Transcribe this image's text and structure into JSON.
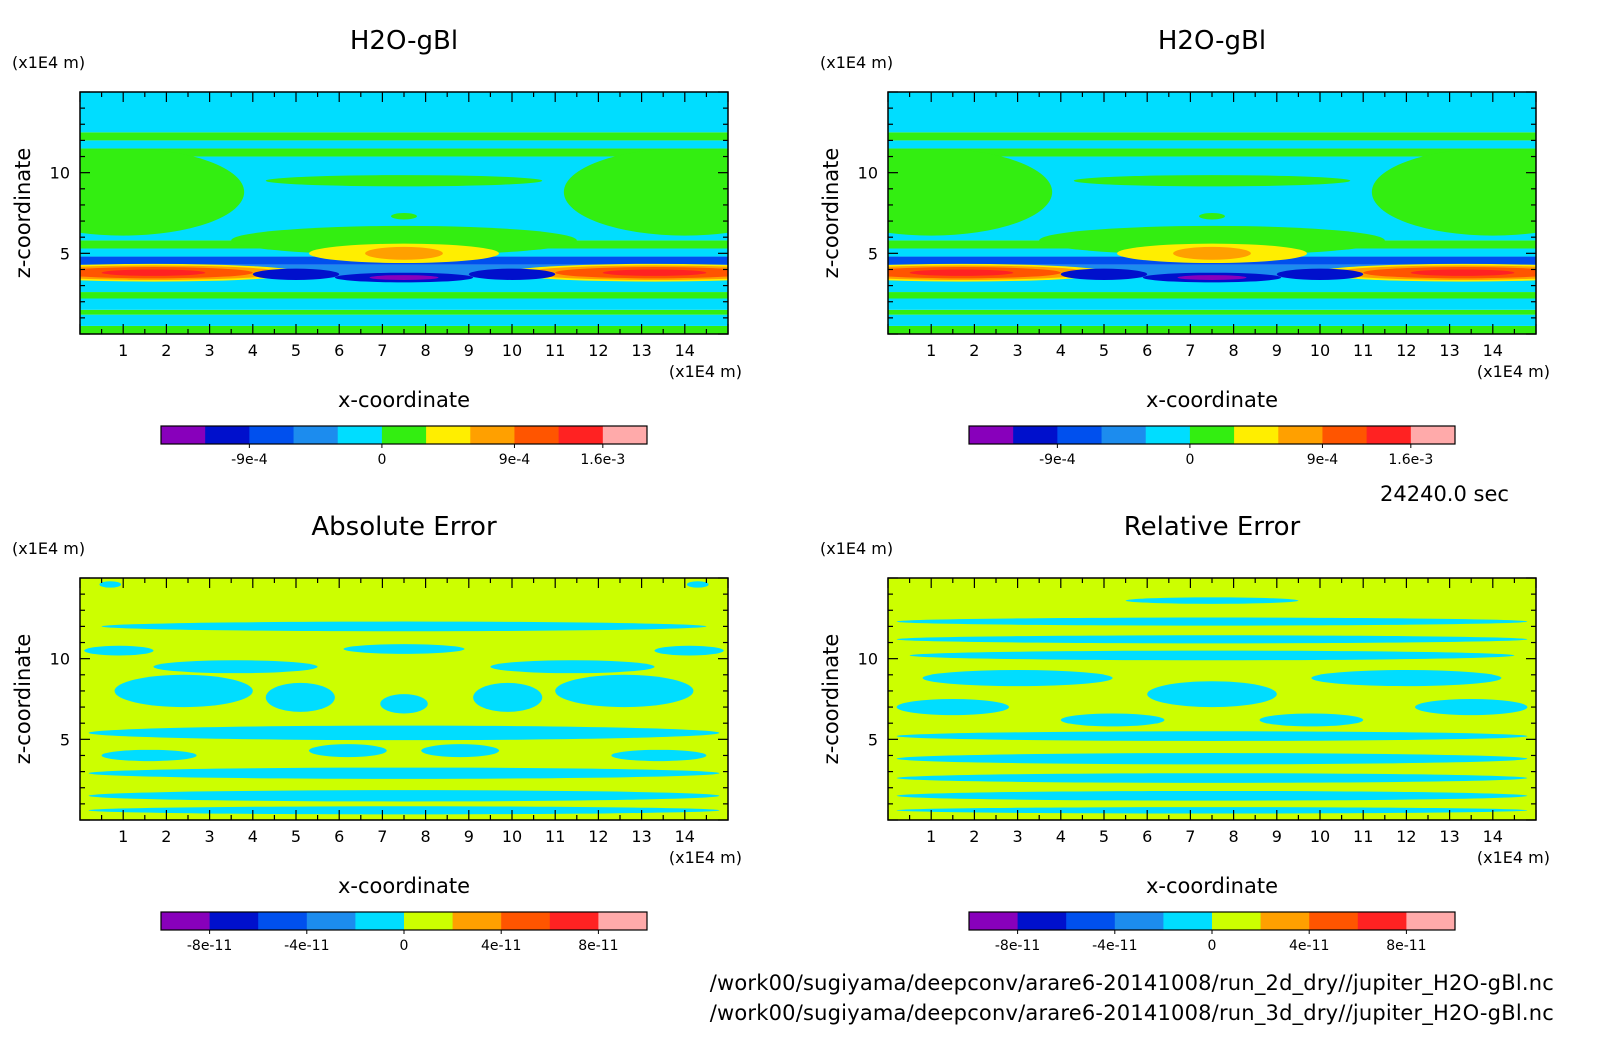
{
  "time_label": "24240.0 sec",
  "footer": {
    "path_1": "/work00/sugiyama/deepconv/arare6-20141008/run_2d_dry//jupiter_H2O-gBl.nc",
    "path_2": "/work00/sugiyama/deepconv/arare6-20141008/run_3d_dry//jupiter_H2O-gBl.nc"
  },
  "chart_data": [
    {
      "type": "heatmap",
      "title": "H2O-gBl",
      "xlabel": "x-coordinate",
      "ylabel": "z-coordinate",
      "x_unit": "(x1E4 m)",
      "y_unit": "(x1E4 m)",
      "xlim": [
        0,
        15
      ],
      "ylim": [
        0,
        15
      ],
      "x_ticks": [
        "1",
        "2",
        "3",
        "4",
        "5",
        "6",
        "7",
        "8",
        "9",
        "10",
        "11",
        "12",
        "13",
        "14"
      ],
      "y_ticks": [
        "5",
        "10"
      ],
      "colorbar": {
        "colors": [
          "#8800bb",
          "#0010cc",
          "#0050ee",
          "#1c8cee",
          "#00ddff",
          "#33ee11",
          "#ffee00",
          "#ffa000",
          "#ff5500",
          "#ff2222",
          "#ffaaaa"
        ],
        "labels": [
          "-9e-4",
          "0",
          "9e-4",
          "1.6e-3"
        ]
      },
      "bands": [
        {
          "z": [
            0,
            0.5
          ],
          "color": "#33ee11"
        },
        {
          "z": [
            0.5,
            1.2
          ],
          "color": "#00ddff"
        },
        {
          "z": [
            1.2,
            1.5
          ],
          "color": "#33ee11"
        },
        {
          "z": [
            1.5,
            2.2
          ],
          "color": "#00ddff"
        },
        {
          "z": [
            2.2,
            2.6
          ],
          "color": "#33ee11"
        },
        {
          "z": [
            2.6,
            3.5
          ],
          "color": "#00ddff"
        },
        {
          "z": [
            3.5,
            4.3
          ],
          "color": "#1c8cee"
        },
        {
          "z": [
            4.3,
            4.8
          ],
          "color": "#0050ee"
        },
        {
          "z": [
            4.8,
            5.3
          ],
          "color": "#00ddff"
        },
        {
          "z": [
            5.3,
            5.8
          ],
          "color": "#33ee11"
        },
        {
          "z": [
            5.8,
            11.0
          ],
          "color": "#00ddff"
        },
        {
          "z": [
            11.0,
            11.5
          ],
          "color": "#33ee11"
        },
        {
          "z": [
            11.5,
            12.0
          ],
          "color": "#00ddff"
        },
        {
          "z": [
            12.0,
            12.5
          ],
          "color": "#33ee11"
        },
        {
          "z": [
            12.5,
            15.0
          ],
          "color": "#00ddff"
        }
      ],
      "blobs": [
        {
          "x": 1.0,
          "z": 8.8,
          "rx": 2.8,
          "rz": 2.7,
          "color": "#33ee11"
        },
        {
          "x": 14.0,
          "z": 8.8,
          "rx": 2.8,
          "rz": 2.7,
          "color": "#33ee11"
        },
        {
          "x": 7.5,
          "z": 9.5,
          "rx": 3.2,
          "rz": 0.35,
          "color": "#33ee11"
        },
        {
          "x": 7.5,
          "z": 7.3,
          "rx": 0.3,
          "rz": 0.2,
          "color": "#33ee11"
        },
        {
          "x": 7.5,
          "z": 5.8,
          "rx": 4.0,
          "rz": 0.9,
          "color": "#33ee11"
        },
        {
          "x": 7.5,
          "z": 5.0,
          "rx": 2.2,
          "rz": 0.6,
          "color": "#ffee00"
        },
        {
          "x": 7.5,
          "z": 5.0,
          "rx": 0.9,
          "rz": 0.4,
          "color": "#ffa000"
        },
        {
          "x": 1.7,
          "z": 3.8,
          "rx": 3.4,
          "rz": 0.55,
          "color": "#ffee00"
        },
        {
          "x": 1.7,
          "z": 3.8,
          "rx": 3.0,
          "rz": 0.45,
          "color": "#ffa000"
        },
        {
          "x": 1.7,
          "z": 3.8,
          "rx": 2.3,
          "rz": 0.35,
          "color": "#ff5500"
        },
        {
          "x": 1.7,
          "z": 3.8,
          "rx": 1.2,
          "rz": 0.2,
          "color": "#ff2222"
        },
        {
          "x": 13.3,
          "z": 3.8,
          "rx": 3.4,
          "rz": 0.55,
          "color": "#ffee00"
        },
        {
          "x": 13.3,
          "z": 3.8,
          "rx": 3.0,
          "rz": 0.45,
          "color": "#ffa000"
        },
        {
          "x": 13.3,
          "z": 3.8,
          "rx": 2.3,
          "rz": 0.35,
          "color": "#ff5500"
        },
        {
          "x": 13.3,
          "z": 3.8,
          "rx": 1.2,
          "rz": 0.2,
          "color": "#ff2222"
        },
        {
          "x": 5.0,
          "z": 3.7,
          "rx": 1.0,
          "rz": 0.35,
          "color": "#0010cc"
        },
        {
          "x": 10.0,
          "z": 3.7,
          "rx": 1.0,
          "rz": 0.35,
          "color": "#0010cc"
        },
        {
          "x": 7.5,
          "z": 3.5,
          "rx": 1.6,
          "rz": 0.3,
          "color": "#0010cc"
        },
        {
          "x": 7.5,
          "z": 3.5,
          "rx": 0.8,
          "rz": 0.15,
          "color": "#8800bb"
        }
      ]
    },
    {
      "type": "heatmap",
      "title": "H2O-gBl",
      "xlabel": "x-coordinate",
      "ylabel": "z-coordinate",
      "x_unit": "(x1E4 m)",
      "y_unit": "(x1E4 m)",
      "xlim": [
        0,
        15
      ],
      "ylim": [
        0,
        15
      ],
      "x_ticks": [
        "1",
        "2",
        "3",
        "4",
        "5",
        "6",
        "7",
        "8",
        "9",
        "10",
        "11",
        "12",
        "13",
        "14"
      ],
      "y_ticks": [
        "5",
        "10"
      ],
      "colorbar": {
        "colors": [
          "#8800bb",
          "#0010cc",
          "#0050ee",
          "#1c8cee",
          "#00ddff",
          "#33ee11",
          "#ffee00",
          "#ffa000",
          "#ff5500",
          "#ff2222",
          "#ffaaaa"
        ],
        "labels": [
          "-9e-4",
          "0",
          "9e-4",
          "1.6e-3"
        ]
      },
      "bands": [
        {
          "z": [
            0,
            0.5
          ],
          "color": "#33ee11"
        },
        {
          "z": [
            0.5,
            1.2
          ],
          "color": "#00ddff"
        },
        {
          "z": [
            1.2,
            1.5
          ],
          "color": "#33ee11"
        },
        {
          "z": [
            1.5,
            2.2
          ],
          "color": "#00ddff"
        },
        {
          "z": [
            2.2,
            2.6
          ],
          "color": "#33ee11"
        },
        {
          "z": [
            2.6,
            3.5
          ],
          "color": "#00ddff"
        },
        {
          "z": [
            3.5,
            4.3
          ],
          "color": "#1c8cee"
        },
        {
          "z": [
            4.3,
            4.8
          ],
          "color": "#0050ee"
        },
        {
          "z": [
            4.8,
            5.3
          ],
          "color": "#00ddff"
        },
        {
          "z": [
            5.3,
            5.8
          ],
          "color": "#33ee11"
        },
        {
          "z": [
            5.8,
            11.0
          ],
          "color": "#00ddff"
        },
        {
          "z": [
            11.0,
            11.5
          ],
          "color": "#33ee11"
        },
        {
          "z": [
            11.5,
            12.0
          ],
          "color": "#00ddff"
        },
        {
          "z": [
            12.0,
            12.5
          ],
          "color": "#33ee11"
        },
        {
          "z": [
            12.5,
            15.0
          ],
          "color": "#00ddff"
        }
      ],
      "blobs": [
        {
          "x": 1.0,
          "z": 8.8,
          "rx": 2.8,
          "rz": 2.7,
          "color": "#33ee11"
        },
        {
          "x": 14.0,
          "z": 8.8,
          "rx": 2.8,
          "rz": 2.7,
          "color": "#33ee11"
        },
        {
          "x": 7.5,
          "z": 9.5,
          "rx": 3.2,
          "rz": 0.35,
          "color": "#33ee11"
        },
        {
          "x": 7.5,
          "z": 7.3,
          "rx": 0.3,
          "rz": 0.2,
          "color": "#33ee11"
        },
        {
          "x": 7.5,
          "z": 5.8,
          "rx": 4.0,
          "rz": 0.9,
          "color": "#33ee11"
        },
        {
          "x": 7.5,
          "z": 5.0,
          "rx": 2.2,
          "rz": 0.6,
          "color": "#ffee00"
        },
        {
          "x": 7.5,
          "z": 5.0,
          "rx": 0.9,
          "rz": 0.4,
          "color": "#ffa000"
        },
        {
          "x": 1.7,
          "z": 3.8,
          "rx": 3.4,
          "rz": 0.55,
          "color": "#ffee00"
        },
        {
          "x": 1.7,
          "z": 3.8,
          "rx": 3.0,
          "rz": 0.45,
          "color": "#ffa000"
        },
        {
          "x": 1.7,
          "z": 3.8,
          "rx": 2.3,
          "rz": 0.35,
          "color": "#ff5500"
        },
        {
          "x": 1.7,
          "z": 3.8,
          "rx": 1.2,
          "rz": 0.2,
          "color": "#ff2222"
        },
        {
          "x": 13.3,
          "z": 3.8,
          "rx": 3.4,
          "rz": 0.55,
          "color": "#ffee00"
        },
        {
          "x": 13.3,
          "z": 3.8,
          "rx": 3.0,
          "rz": 0.45,
          "color": "#ffa000"
        },
        {
          "x": 13.3,
          "z": 3.8,
          "rx": 2.3,
          "rz": 0.35,
          "color": "#ff5500"
        },
        {
          "x": 13.3,
          "z": 3.8,
          "rx": 1.2,
          "rz": 0.2,
          "color": "#ff2222"
        },
        {
          "x": 5.0,
          "z": 3.7,
          "rx": 1.0,
          "rz": 0.35,
          "color": "#0010cc"
        },
        {
          "x": 10.0,
          "z": 3.7,
          "rx": 1.0,
          "rz": 0.35,
          "color": "#0010cc"
        },
        {
          "x": 7.5,
          "z": 3.5,
          "rx": 1.6,
          "rz": 0.3,
          "color": "#0010cc"
        },
        {
          "x": 7.5,
          "z": 3.5,
          "rx": 0.8,
          "rz": 0.15,
          "color": "#8800bb"
        }
      ]
    },
    {
      "type": "heatmap",
      "title": "Absolute Error",
      "xlabel": "x-coordinate",
      "ylabel": "z-coordinate",
      "x_unit": "(x1E4 m)",
      "y_unit": "(x1E4 m)",
      "xlim": [
        0,
        15
      ],
      "ylim": [
        0,
        15
      ],
      "x_ticks": [
        "1",
        "2",
        "3",
        "4",
        "5",
        "6",
        "7",
        "8",
        "9",
        "10",
        "11",
        "12",
        "13",
        "14"
      ],
      "y_ticks": [
        "5",
        "10"
      ],
      "colorbar": {
        "colors": [
          "#8800bb",
          "#0010cc",
          "#0050ee",
          "#1c8cee",
          "#00ddff",
          "#ccff00",
          "#ffa000",
          "#ff5500",
          "#ff2222",
          "#ffaaaa"
        ],
        "labels": [
          "-8e-11",
          "-4e-11",
          "0",
          "4e-11",
          "8e-11"
        ]
      },
      "base_color": "#ccff00",
      "blobs": [
        {
          "x": 7.5,
          "z": 5.4,
          "rx": 7.3,
          "rz": 0.45,
          "color": "#00ddff"
        },
        {
          "x": 7.5,
          "z": 2.9,
          "rx": 7.3,
          "rz": 0.35,
          "color": "#00ddff"
        },
        {
          "x": 7.5,
          "z": 1.5,
          "rx": 7.3,
          "rz": 0.35,
          "color": "#00ddff"
        },
        {
          "x": 7.5,
          "z": 0.6,
          "rx": 7.3,
          "rz": 0.25,
          "color": "#00ddff"
        },
        {
          "x": 7.5,
          "z": 12.0,
          "rx": 7.0,
          "rz": 0.3,
          "color": "#00ddff"
        },
        {
          "x": 3.6,
          "z": 9.5,
          "rx": 1.9,
          "rz": 0.4,
          "color": "#00ddff"
        },
        {
          "x": 11.4,
          "z": 9.5,
          "rx": 1.9,
          "rz": 0.4,
          "color": "#00ddff"
        },
        {
          "x": 2.4,
          "z": 8.0,
          "rx": 1.6,
          "rz": 1.0,
          "color": "#00ddff"
        },
        {
          "x": 12.6,
          "z": 8.0,
          "rx": 1.6,
          "rz": 1.0,
          "color": "#00ddff"
        },
        {
          "x": 5.1,
          "z": 7.6,
          "rx": 0.8,
          "rz": 0.9,
          "color": "#00ddff"
        },
        {
          "x": 9.9,
          "z": 7.6,
          "rx": 0.8,
          "rz": 0.9,
          "color": "#00ddff"
        },
        {
          "x": 7.5,
          "z": 7.2,
          "rx": 0.55,
          "rz": 0.6,
          "color": "#00ddff"
        },
        {
          "x": 0.9,
          "z": 10.5,
          "rx": 0.8,
          "rz": 0.3,
          "color": "#00ddff"
        },
        {
          "x": 14.1,
          "z": 10.5,
          "rx": 0.8,
          "rz": 0.3,
          "color": "#00ddff"
        },
        {
          "x": 7.5,
          "z": 10.6,
          "rx": 1.4,
          "rz": 0.3,
          "color": "#00ddff"
        },
        {
          "x": 6.2,
          "z": 4.3,
          "rx": 0.9,
          "rz": 0.4,
          "color": "#00ddff"
        },
        {
          "x": 8.8,
          "z": 4.3,
          "rx": 0.9,
          "rz": 0.4,
          "color": "#00ddff"
        },
        {
          "x": 1.6,
          "z": 4.0,
          "rx": 1.1,
          "rz": 0.35,
          "color": "#00ddff"
        },
        {
          "x": 13.4,
          "z": 4.0,
          "rx": 1.1,
          "rz": 0.35,
          "color": "#00ddff"
        },
        {
          "x": 0.7,
          "z": 14.6,
          "rx": 0.25,
          "rz": 0.2,
          "color": "#00ddff"
        },
        {
          "x": 14.3,
          "z": 14.6,
          "rx": 0.25,
          "rz": 0.2,
          "color": "#00ddff"
        }
      ]
    },
    {
      "type": "heatmap",
      "title": "Relative Error",
      "xlabel": "x-coordinate",
      "ylabel": "z-coordinate",
      "x_unit": "(x1E4 m)",
      "y_unit": "(x1E4 m)",
      "xlim": [
        0,
        15
      ],
      "ylim": [
        0,
        15
      ],
      "x_ticks": [
        "1",
        "2",
        "3",
        "4",
        "5",
        "6",
        "7",
        "8",
        "9",
        "10",
        "11",
        "12",
        "13",
        "14"
      ],
      "y_ticks": [
        "5",
        "10"
      ],
      "colorbar": {
        "colors": [
          "#8800bb",
          "#0010cc",
          "#0050ee",
          "#1c8cee",
          "#00ddff",
          "#ccff00",
          "#ffa000",
          "#ff5500",
          "#ff2222",
          "#ffaaaa"
        ],
        "labels": [
          "-8e-11",
          "-4e-11",
          "0",
          "4e-11",
          "8e-11"
        ]
      },
      "base_color": "#ccff00",
      "blobs": [
        {
          "x": 7.5,
          "z": 12.3,
          "rx": 7.3,
          "rz": 0.25,
          "color": "#00ddff"
        },
        {
          "x": 7.5,
          "z": 11.2,
          "rx": 7.3,
          "rz": 0.25,
          "color": "#00ddff"
        },
        {
          "x": 7.5,
          "z": 10.2,
          "rx": 7.0,
          "rz": 0.3,
          "color": "#00ddff"
        },
        {
          "x": 3.0,
          "z": 8.8,
          "rx": 2.2,
          "rz": 0.5,
          "color": "#00ddff"
        },
        {
          "x": 12.0,
          "z": 8.8,
          "rx": 2.2,
          "rz": 0.5,
          "color": "#00ddff"
        },
        {
          "x": 7.5,
          "z": 7.8,
          "rx": 1.5,
          "rz": 0.8,
          "color": "#00ddff"
        },
        {
          "x": 1.5,
          "z": 7.0,
          "rx": 1.3,
          "rz": 0.5,
          "color": "#00ddff"
        },
        {
          "x": 13.5,
          "z": 7.0,
          "rx": 1.3,
          "rz": 0.5,
          "color": "#00ddff"
        },
        {
          "x": 5.2,
          "z": 6.2,
          "rx": 1.2,
          "rz": 0.4,
          "color": "#00ddff"
        },
        {
          "x": 9.8,
          "z": 6.2,
          "rx": 1.2,
          "rz": 0.4,
          "color": "#00ddff"
        },
        {
          "x": 7.5,
          "z": 5.2,
          "rx": 7.3,
          "rz": 0.3,
          "color": "#00ddff"
        },
        {
          "x": 7.5,
          "z": 3.8,
          "rx": 7.3,
          "rz": 0.35,
          "color": "#00ddff"
        },
        {
          "x": 7.5,
          "z": 2.6,
          "rx": 7.3,
          "rz": 0.3,
          "color": "#00ddff"
        },
        {
          "x": 7.5,
          "z": 1.5,
          "rx": 7.3,
          "rz": 0.3,
          "color": "#00ddff"
        },
        {
          "x": 7.5,
          "z": 0.6,
          "rx": 7.3,
          "rz": 0.2,
          "color": "#00ddff"
        },
        {
          "x": 7.5,
          "z": 13.6,
          "rx": 2.0,
          "rz": 0.2,
          "color": "#00ddff"
        }
      ]
    }
  ]
}
